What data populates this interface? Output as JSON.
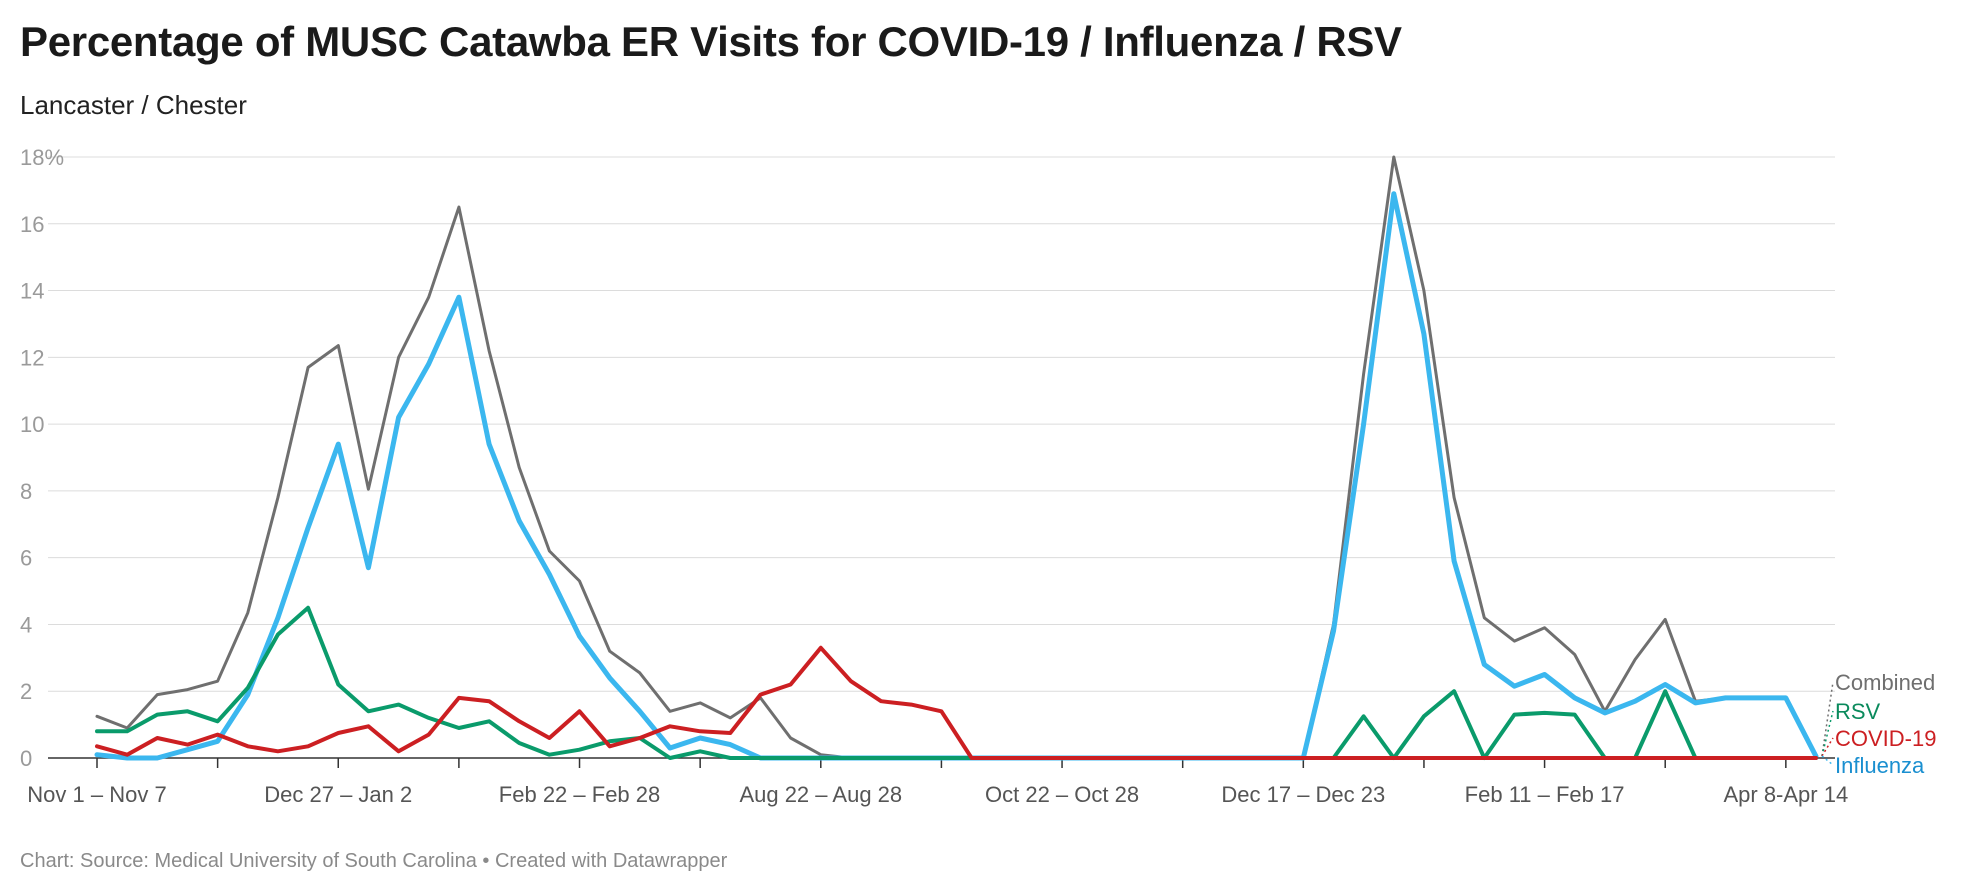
{
  "title": "Percentage of MUSC Catawba ER Visits for COVID-19 / Influenza / RSV",
  "subtitle": "Lancaster / Chester",
  "footer": "Chart: Source: Medical University of South Carolina • Created with Datawrapper",
  "chart_data": {
    "type": "line",
    "ylim": [
      0,
      18
    ],
    "y_ticks": [
      "18%",
      "16",
      "14",
      "12",
      "10",
      "8",
      "6",
      "4",
      "2",
      "0"
    ],
    "y_tick_values": [
      18,
      16,
      14,
      12,
      10,
      8,
      6,
      4,
      2,
      0
    ],
    "x_count": 58,
    "x_tick_labels": [
      {
        "index": 0,
        "label": "Nov 1 – Nov 7"
      },
      {
        "index": 8,
        "label": "Dec 27 – Jan 2"
      },
      {
        "index": 16,
        "label": "Feb 22 – Feb 28"
      },
      {
        "index": 24,
        "label": "Aug 22 – Aug 28"
      },
      {
        "index": 32,
        "label": "Oct 22 – Oct 28"
      },
      {
        "index": 40,
        "label": "Dec 17 – Dec 23"
      },
      {
        "index": 48,
        "label": "Feb 11 – Feb 17"
      },
      {
        "index": 56,
        "label": "Apr 8-Apr 14"
      }
    ],
    "minor_tick_indices": [
      4,
      12,
      20,
      28,
      36,
      44,
      52
    ],
    "grid": true,
    "series": [
      {
        "name": "Combined",
        "color": "#6f6f6f",
        "values": [
          1.25,
          0.9,
          1.9,
          2.05,
          2.3,
          4.35,
          7.8,
          11.7,
          12.35,
          8.05,
          12.0,
          13.8,
          16.5,
          12.2,
          8.7,
          6.2,
          5.3,
          3.2,
          2.55,
          1.4,
          1.65,
          1.2,
          1.8,
          0.6,
          0.1,
          0,
          0,
          0,
          0,
          0,
          0,
          0,
          0,
          0,
          0,
          0,
          0,
          0,
          0,
          0,
          0,
          4.0,
          11.5,
          18.0,
          14.0,
          7.8,
          4.2,
          3.5,
          3.9,
          3.1,
          1.4,
          2.95,
          4.15,
          1.7,
          1.8,
          1.8,
          1.8,
          0.05
        ]
      },
      {
        "name": "Influenza",
        "color": "#3bb7ef",
        "values": [
          0.1,
          0,
          0,
          0.25,
          0.5,
          1.9,
          4.2,
          6.9,
          9.4,
          5.7,
          10.2,
          11.8,
          13.8,
          9.4,
          7.1,
          5.5,
          3.65,
          2.4,
          1.4,
          0.3,
          0.6,
          0.4,
          0,
          0,
          0,
          0,
          0,
          0,
          0,
          0,
          0,
          0,
          0,
          0,
          0,
          0,
          0,
          0,
          0,
          0,
          0,
          3.8,
          10.0,
          16.9,
          12.7,
          5.9,
          2.8,
          2.15,
          2.5,
          1.8,
          1.35,
          1.7,
          2.2,
          1.65,
          1.8,
          1.8,
          1.8,
          0.05
        ]
      },
      {
        "name": "RSV",
        "color": "#0a9b6b",
        "values": [
          0.8,
          0.8,
          1.3,
          1.4,
          1.1,
          2.1,
          3.7,
          4.5,
          2.2,
          1.4,
          1.6,
          1.2,
          0.9,
          1.1,
          0.45,
          0.1,
          0.25,
          0.5,
          0.6,
          0,
          0.2,
          0,
          0,
          0,
          0,
          0,
          0,
          0,
          0,
          0,
          0,
          0,
          0,
          0,
          0,
          0,
          0,
          0,
          0,
          0,
          0,
          0,
          1.25,
          0,
          1.25,
          2.0,
          0,
          1.3,
          1.35,
          1.3,
          0,
          0,
          2.0,
          0,
          0,
          0,
          0,
          0
        ]
      },
      {
        "name": "COVID-19",
        "color": "#cc1f22",
        "values": [
          0.35,
          0.1,
          0.6,
          0.4,
          0.7,
          0.35,
          0.2,
          0.35,
          0.75,
          0.95,
          0.2,
          0.7,
          1.8,
          1.7,
          1.1,
          0.6,
          1.4,
          0.35,
          0.6,
          0.95,
          0.8,
          0.75,
          1.9,
          2.2,
          3.3,
          2.3,
          1.7,
          1.6,
          1.4,
          0,
          0,
          0,
          0,
          0,
          0,
          0,
          0,
          0,
          0,
          0,
          0,
          0,
          0,
          0,
          0,
          0,
          0,
          0,
          0,
          0,
          0,
          0,
          0,
          0,
          0,
          0,
          0,
          0
        ]
      }
    ],
    "legend_order": [
      "Combined",
      "RSV",
      "COVID-19",
      "Influenza"
    ],
    "legend_placement": "right end labels"
  }
}
